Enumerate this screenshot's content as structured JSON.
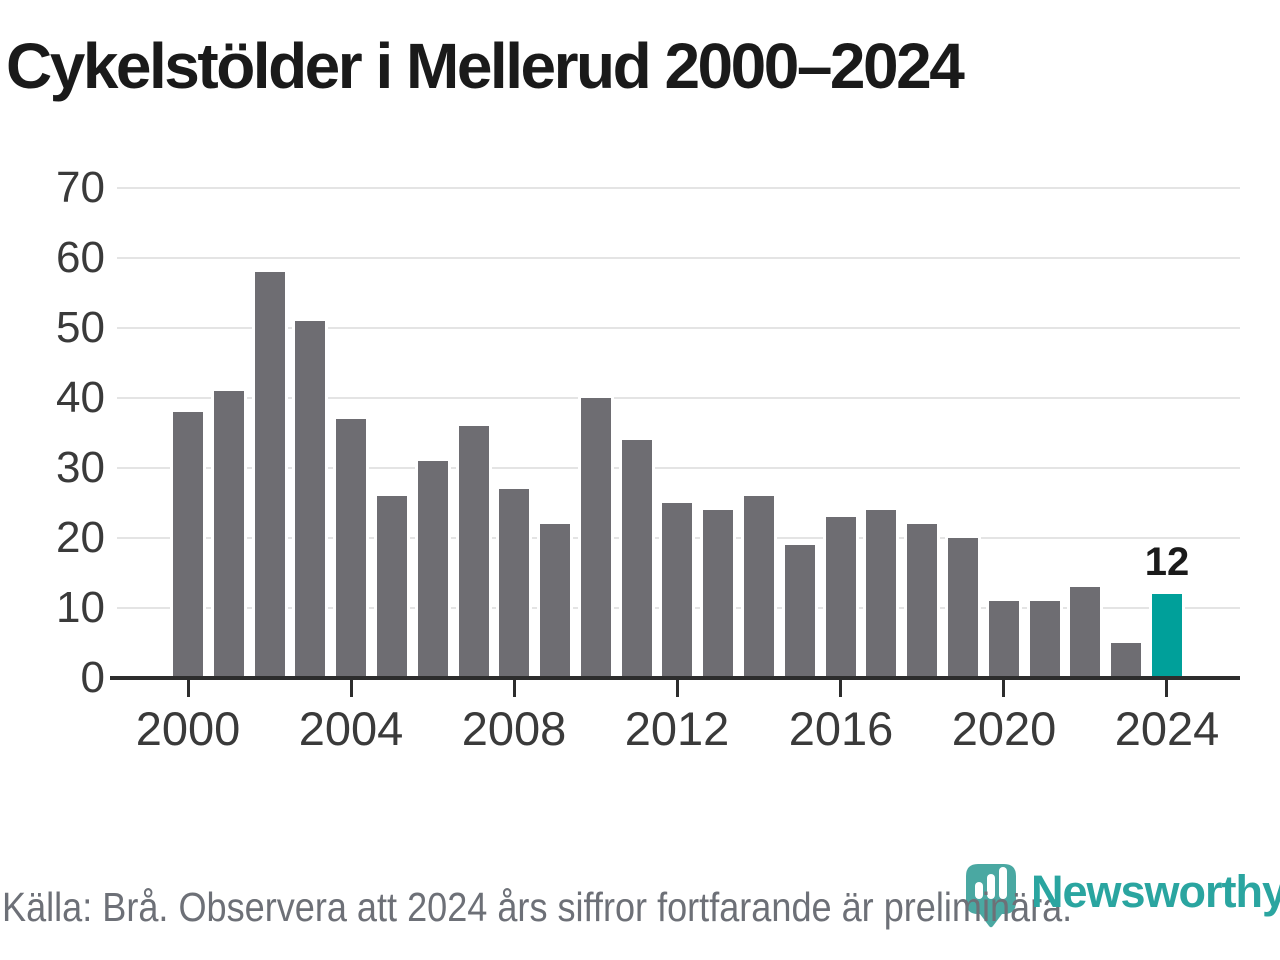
{
  "title": "Cykelstölder i Mellerud 2000–2024",
  "source_note": "Källa: Brå. Observera att 2024 års siffror fortfarande är preliminära.",
  "branding": {
    "name": "Newsworthy",
    "icon": "newsworthy-speech-bubble-bar-chart-icon"
  },
  "colors": {
    "title": "#1a1a1a",
    "bar": "#6e6d72",
    "highlight": "#00a09a",
    "grid": "#e4e4e4",
    "axis": "#2d2d2d",
    "tick_label": "#3a3a3a",
    "source": "#6d7077",
    "brand_teal": "#2aa5a0",
    "logo_teal": "#4aa8a2"
  },
  "chart_data": {
    "type": "bar",
    "title": "Cykelstölder i Mellerud 2000–2024",
    "categories": [
      2000,
      2001,
      2002,
      2003,
      2004,
      2005,
      2006,
      2007,
      2008,
      2009,
      2010,
      2011,
      2012,
      2013,
      2014,
      2015,
      2016,
      2017,
      2018,
      2019,
      2020,
      2021,
      2022,
      2023,
      2024
    ],
    "values": [
      38,
      41,
      58,
      51,
      37,
      26,
      31,
      36,
      27,
      22,
      40,
      34,
      25,
      24,
      26,
      19,
      23,
      24,
      22,
      20,
      11,
      11,
      13,
      5,
      12
    ],
    "highlight_index": 24,
    "highlight_label": "12",
    "xlabel": "",
    "ylabel": "",
    "ylim": [
      0,
      70
    ],
    "y_ticks": [
      0,
      10,
      20,
      30,
      40,
      50,
      60,
      70
    ],
    "x_tick_years": [
      2000,
      2004,
      2008,
      2012,
      2016,
      2020,
      2024
    ],
    "grid": true,
    "legend": false
  }
}
